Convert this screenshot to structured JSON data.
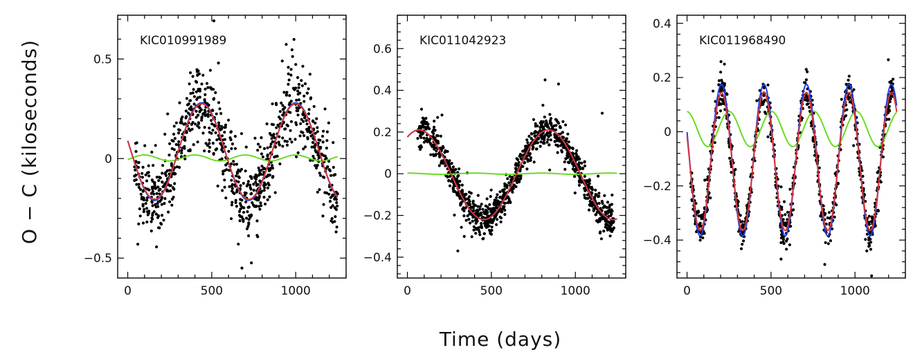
{
  "figure": {
    "ylabel": "O − C (kiloseconds)",
    "xlabel": "Time (days)"
  },
  "colors": {
    "points": "#000000",
    "blue_model": "#1f3fe0",
    "red_model": "#d9353a",
    "green_model": "#66dd22"
  },
  "chart_data": [
    {
      "type": "scatter",
      "star": "KIC010991989",
      "xlim": [
        -60,
        1300
      ],
      "ylim": [
        -0.6,
        0.72
      ],
      "xticks": [
        0,
        500,
        1000
      ],
      "yticks": [
        -0.5,
        0,
        0.5
      ],
      "xtick_labels": [
        "0",
        "500",
        "1000"
      ],
      "ytick_labels": [
        "−0.5",
        "0",
        "0.5"
      ],
      "models": {
        "blue": {
          "amplitude": 0.245,
          "period": 560,
          "phase_day": 440,
          "offset": 0.035
        },
        "red": {
          "amplitude": 0.24,
          "period": 560,
          "phase_day": 440,
          "offset": 0.035
        },
        "green": {
          "amplitude": 0.015,
          "period": 300,
          "phase_day": 100,
          "offset": 0.003
        }
      },
      "points": {
        "count": 900,
        "x_range": [
          40,
          1250
        ],
        "scatter": 0.09,
        "extremes": [
          [
            420,
            0.44
          ],
          [
            540,
            0.48
          ],
          [
            920,
            0.49
          ],
          [
            60,
            -0.43
          ],
          [
            720,
            -0.33
          ],
          [
            1220,
            -0.32
          ]
        ]
      }
    },
    {
      "type": "scatter",
      "star": "KIC011042923",
      "xlim": [
        -60,
        1300
      ],
      "ylim": [
        -0.5,
        0.76
      ],
      "xticks": [
        0,
        500,
        1000
      ],
      "yticks": [
        -0.4,
        -0.2,
        0,
        0.2,
        0.4,
        0.6
      ],
      "xtick_labels": [
        "0",
        "500",
        "1000"
      ],
      "ytick_labels": [
        "−0.4",
        "−0.2",
        "0",
        "0.2",
        "0.4",
        "0.6"
      ],
      "models": {
        "blue": {
          "amplitude": 0.215,
          "period": 770,
          "phase_day": 840,
          "offset": -0.005
        },
        "red": {
          "amplitude": 0.215,
          "period": 770,
          "phase_day": 840,
          "offset": -0.005
        },
        "green": {
          "amplitude": 0.003,
          "period": 400,
          "phase_day": 0,
          "offset": 0.0
        }
      },
      "points": {
        "count": 1100,
        "x_range": [
          60,
          1230
        ],
        "scatter": 0.035,
        "extremes": [
          [
            180,
            0.27
          ],
          [
            820,
            0.45
          ],
          [
            900,
            0.43
          ],
          [
            1160,
            0.29
          ],
          [
            300,
            -0.37
          ],
          [
            500,
            -0.29
          ]
        ]
      }
    },
    {
      "type": "scatter",
      "star": "KIC011968490",
      "xlim": [
        -60,
        1300
      ],
      "ylim": [
        -0.54,
        0.43
      ],
      "xticks": [
        0,
        500,
        1000
      ],
      "yticks": [
        -0.4,
        -0.2,
        0,
        0.2,
        0.4
      ],
      "xtick_labels": [
        "0",
        "500",
        "1000"
      ],
      "ytick_labels": [
        "−0.4",
        "−0.2",
        "0",
        "0.2",
        "0.4"
      ],
      "models": {
        "blue": {
          "amplitude": 0.28,
          "period": 253,
          "phase_day": 205,
          "offset": -0.105
        },
        "red": {
          "amplitude": 0.255,
          "period": 253,
          "phase_day": 205,
          "offset": -0.11
        },
        "green": {
          "amplitude": 0.065,
          "period": 253,
          "phase_day": 250,
          "offset": 0.01
        }
      },
      "points": {
        "count": 1000,
        "x_range": [
          20,
          1230
        ],
        "scatter": 0.03,
        "extremes": [
          [
            200,
            0.22
          ],
          [
            710,
            0.23
          ],
          [
            560,
            -0.47
          ],
          [
            820,
            -0.49
          ],
          [
            1070,
            -0.44
          ]
        ]
      }
    }
  ]
}
